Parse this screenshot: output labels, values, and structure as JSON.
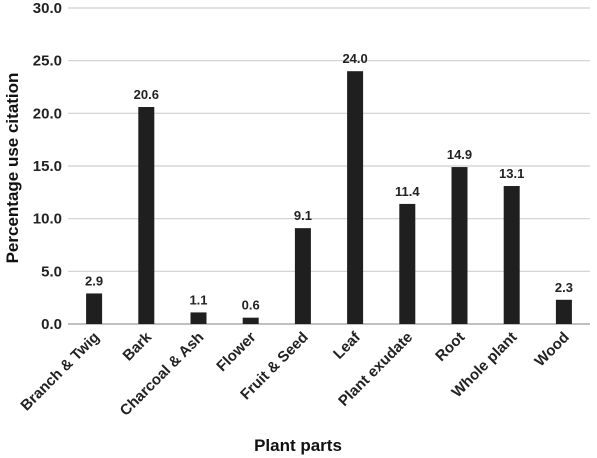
{
  "chart_data": {
    "type": "bar",
    "title": "",
    "xlabel": "Plant parts",
    "ylabel": "Percentage use citation",
    "categories": [
      "Branch & Twig",
      "Bark",
      "Charcoal & Ash",
      "Flower",
      "Fruit & Seed",
      "Leaf",
      "Plant exudate",
      "Root",
      "Whole plant",
      "Wood"
    ],
    "values": [
      2.9,
      20.6,
      1.1,
      0.6,
      9.1,
      24.0,
      11.4,
      14.9,
      13.1,
      2.3
    ],
    "value_labels": [
      "2.9",
      "20.6",
      "1.1",
      "0.6",
      "9.1",
      "24.0",
      "11.4",
      "14.9",
      "13.1",
      "2.3"
    ],
    "ylim": [
      0,
      30
    ],
    "yticks": [
      0,
      5,
      10,
      15,
      20,
      25,
      30
    ],
    "ytick_labels": [
      "0.0",
      "5.0",
      "10.0",
      "15.0",
      "20.0",
      "25.0",
      "30.0"
    ],
    "grid": true,
    "legend": "none",
    "bar_color": "#1f1f1f",
    "grid_color": "#cfcfcf"
  }
}
